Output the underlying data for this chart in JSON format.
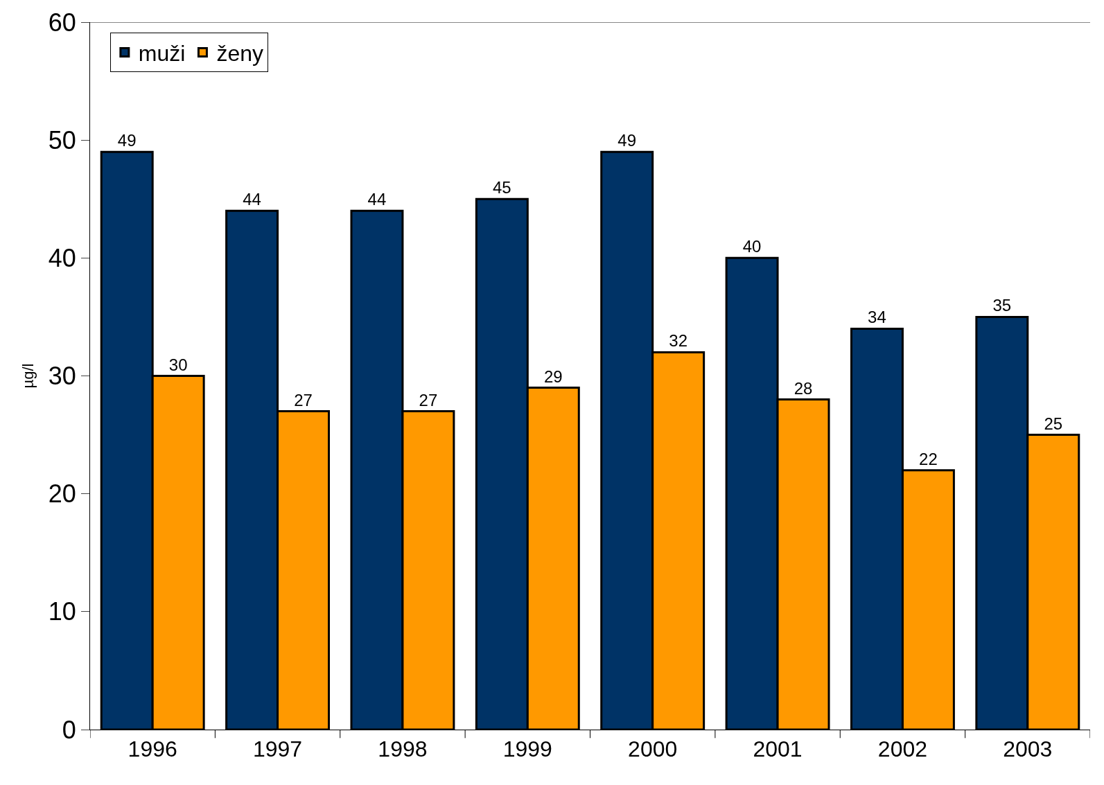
{
  "chart_data": {
    "type": "bar",
    "ylabel": "µg/l",
    "categories": [
      "1996",
      "1997",
      "1998",
      "1999",
      "2000",
      "2001",
      "2002",
      "2003"
    ],
    "series": [
      {
        "name": "muži",
        "color": "#003366",
        "values": [
          49,
          44,
          44,
          45,
          49,
          40,
          34,
          35
        ]
      },
      {
        "name": "ženy",
        "color": "#ff9900",
        "values": [
          30,
          27,
          27,
          29,
          32,
          28,
          22,
          25
        ]
      }
    ],
    "ylim": [
      0,
      60
    ],
    "yticks": [
      0,
      10,
      20,
      30,
      40,
      50,
      60
    ],
    "grid": false,
    "legend": "top left",
    "data_labels": true
  }
}
